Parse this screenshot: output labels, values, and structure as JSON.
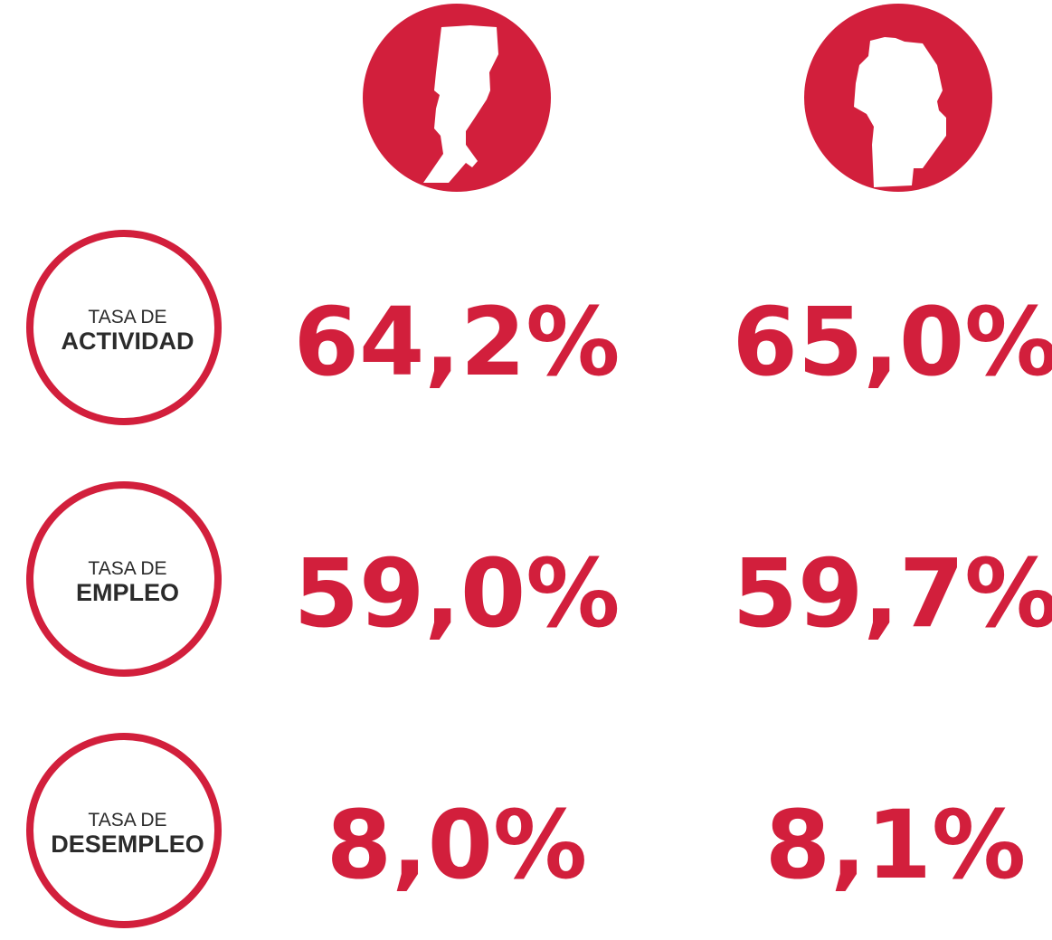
{
  "rows": [
    {
      "prefix": "TASA DE",
      "label": "ACTIVIDAD",
      "values": [
        "64,2%",
        "65,0%"
      ]
    },
    {
      "prefix": "TASA DE",
      "label": "EMPLEO",
      "values": [
        "59,0%",
        "59,7%"
      ]
    },
    {
      "prefix": "TASA DE",
      "label": "DESEMPLEO",
      "values": [
        "8,0%",
        "8,1%"
      ]
    }
  ]
}
